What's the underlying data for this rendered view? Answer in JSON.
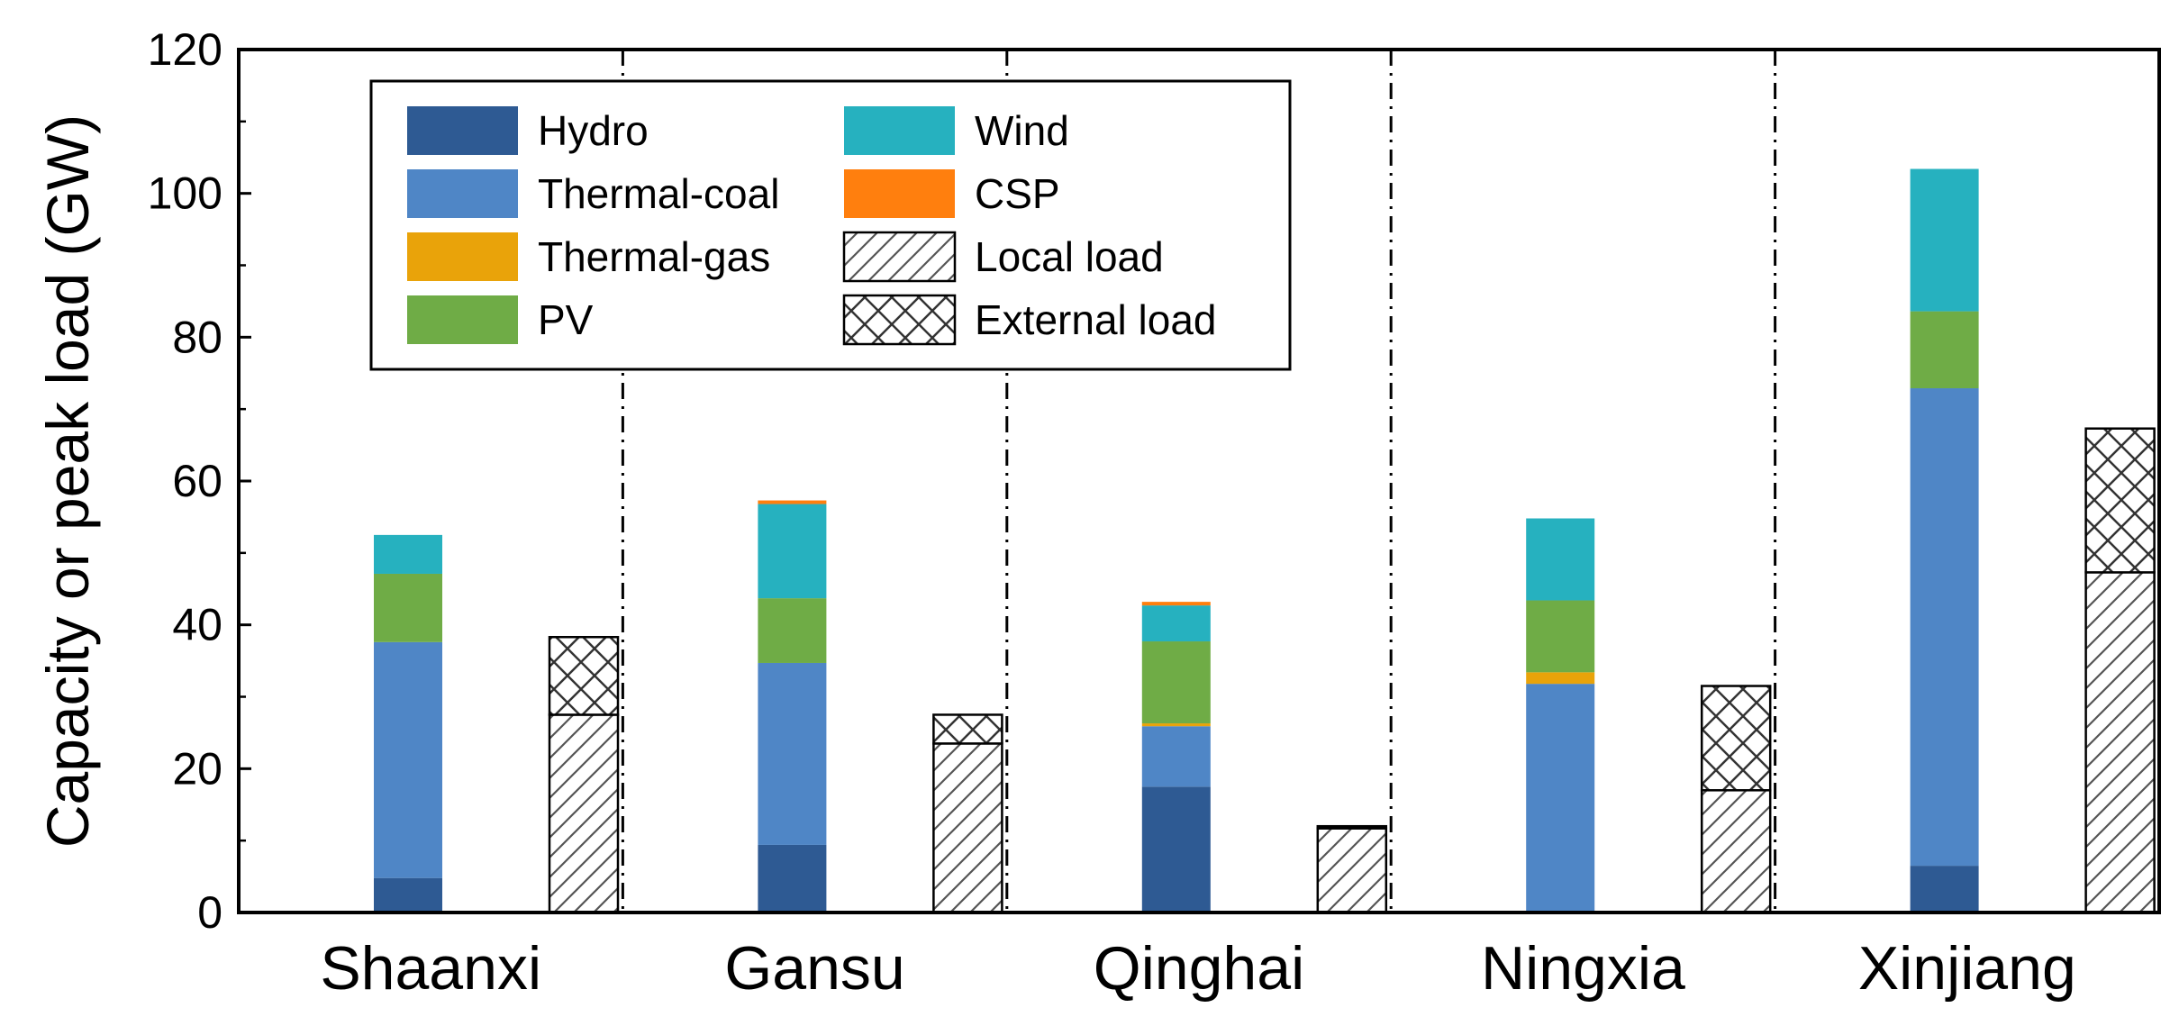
{
  "chart_data": {
    "type": "bar",
    "stacked": true,
    "title": "",
    "xlabel": "",
    "ylabel": "Capacity or peak load (GW)",
    "ylim": [
      0,
      120
    ],
    "yticks": [
      0,
      20,
      40,
      60,
      80,
      100,
      120
    ],
    "grid": false,
    "legend_position": "top-left",
    "categories": [
      "Shaanxi",
      "Gansu",
      "Qinghai",
      "Ningxia",
      "Xinjiang"
    ],
    "capacity_series": [
      {
        "name": "Hydro",
        "color": "#2e5a93",
        "values": [
          4.8,
          9.4,
          17.5,
          0,
          6.5
        ]
      },
      {
        "name": "Thermal-coal",
        "color": "#4f86c6",
        "values": [
          32.8,
          25.3,
          8.4,
          31.8,
          66.4
        ]
      },
      {
        "name": "Thermal-gas",
        "color": "#e9a30a",
        "values": [
          0,
          0,
          0.4,
          1.6,
          0
        ]
      },
      {
        "name": "PV",
        "color": "#6fac46",
        "values": [
          9.5,
          9.0,
          11.4,
          10.0,
          10.7
        ]
      },
      {
        "name": "Wind",
        "color": "#26b1bf",
        "values": [
          5.4,
          13.1,
          5.0,
          11.4,
          19.8
        ]
      },
      {
        "name": "CSP",
        "color": "#ff7f0e",
        "values": [
          0,
          0.5,
          0.5,
          0,
          0
        ]
      }
    ],
    "load_series": [
      {
        "name": "Local load",
        "pattern": "hatch-diag",
        "values": [
          27.5,
          23.5,
          11.7,
          17.0,
          47.3
        ]
      },
      {
        "name": "External load",
        "pattern": "hatch-cross",
        "values": [
          10.8,
          4.0,
          0.3,
          14.5,
          20.0
        ]
      }
    ],
    "legend": [
      {
        "label": "Hydro",
        "swatch": "#2e5a93"
      },
      {
        "label": "Thermal-coal",
        "swatch": "#4f86c6"
      },
      {
        "label": "Thermal-gas",
        "swatch": "#e9a30a"
      },
      {
        "label": "PV",
        "swatch": "#6fac46"
      },
      {
        "label": "Wind",
        "swatch": "#26b1bf"
      },
      {
        "label": "CSP",
        "swatch": "#ff7f0e"
      },
      {
        "label": "Local load",
        "swatch": "hatch-diag"
      },
      {
        "label": "External load",
        "swatch": "hatch-cross"
      }
    ]
  }
}
